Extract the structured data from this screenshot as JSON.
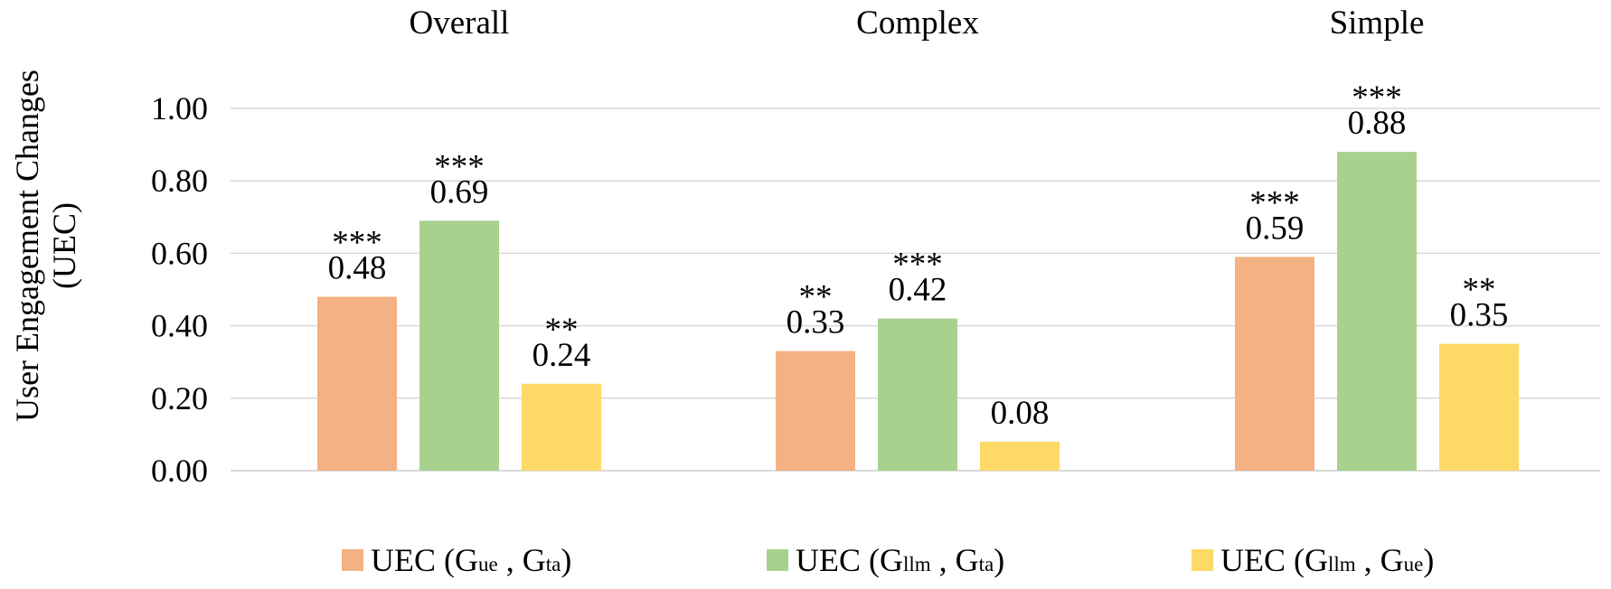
{
  "chart_data": {
    "type": "bar",
    "categories": [
      "Overall",
      "Complex",
      "Simple"
    ],
    "ylabel": [
      "User Engagement Changes",
      "(UEC)"
    ],
    "ylim": [
      0,
      1.0
    ],
    "yticks": [
      "0.00",
      "0.20",
      "0.40",
      "0.60",
      "0.80",
      "1.00"
    ],
    "ytick_values": [
      0,
      0.2,
      0.4,
      0.6,
      0.8,
      1.0
    ],
    "grid": true,
    "legend_position": "bottom",
    "series": [
      {
        "name": "UEC (Gue , Gta)",
        "legend": {
          "prefix": "UEC (G",
          "sub1": "ue",
          "mid": " , G",
          "sub2": "ta",
          "suffix": ")"
        },
        "color": "#F4B183",
        "values": [
          0.48,
          0.33,
          0.59
        ],
        "labels": [
          "0.48",
          "0.33",
          "0.59"
        ],
        "significance": [
          "***",
          "**",
          "***"
        ]
      },
      {
        "name": "UEC (Gllm , Gta)",
        "legend": {
          "prefix": "UEC (G",
          "sub1": "llm",
          "mid": " , G",
          "sub2": "ta",
          "suffix": ")"
        },
        "color": "#A9D18E",
        "values": [
          0.69,
          0.42,
          0.88
        ],
        "labels": [
          "0.69",
          "0.42",
          "0.88"
        ],
        "significance": [
          "***",
          "***",
          "***"
        ]
      },
      {
        "name": "UEC (Gllm , Gue)",
        "legend": {
          "prefix": "UEC (G",
          "sub1": "llm",
          "mid": " , G",
          "sub2": "ue",
          "suffix": ")"
        },
        "color": "#FFD966",
        "values": [
          0.24,
          0.08,
          0.35
        ],
        "labels": [
          "0.24",
          "0.08",
          "0.35"
        ],
        "significance": [
          "**",
          "",
          "**"
        ]
      }
    ]
  }
}
